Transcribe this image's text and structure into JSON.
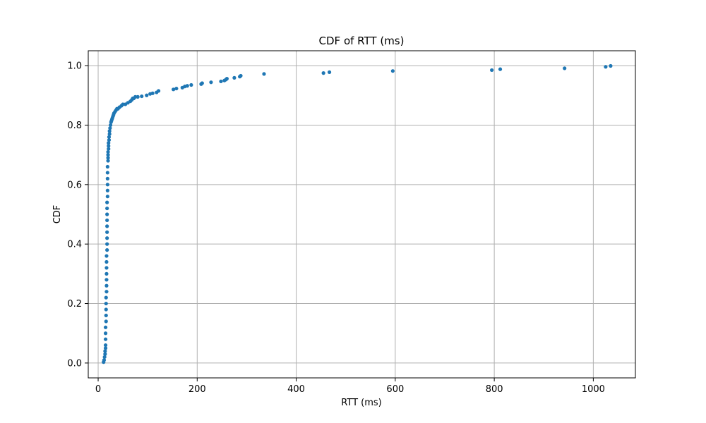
{
  "chart_data": {
    "type": "scatter",
    "title": "CDF of RTT (ms)",
    "xlabel": "RTT (ms)",
    "ylabel": "CDF",
    "xlim": [
      -20,
      1085
    ],
    "ylim": [
      -0.05,
      1.05
    ],
    "xticks": [
      0,
      200,
      400,
      600,
      800,
      1000
    ],
    "yticks": [
      0.0,
      0.2,
      0.4,
      0.6,
      0.8,
      1.0
    ],
    "xtick_labels": [
      "0",
      "200",
      "400",
      "600",
      "800",
      "1000"
    ],
    "ytick_labels": [
      "0.0",
      "0.2",
      "0.4",
      "0.6",
      "0.8",
      "1.0"
    ],
    "grid": true,
    "marker_color": "#1f77b4",
    "series": [
      {
        "x": [
          11,
          12,
          13,
          14,
          14,
          15,
          15,
          15,
          15,
          15,
          16,
          16,
          16,
          16,
          16,
          17,
          17,
          17,
          17,
          17,
          17,
          17,
          18,
          18,
          18,
          18,
          18,
          18,
          18,
          18,
          18,
          19,
          19,
          19,
          19,
          19,
          19,
          20,
          20,
          20,
          20,
          21,
          21,
          21,
          22,
          22,
          23,
          23,
          24,
          25,
          26,
          27,
          28,
          29,
          30,
          31,
          32,
          34,
          36,
          38,
          40,
          43,
          47,
          50,
          55,
          60,
          65,
          68,
          70,
          72,
          75,
          80,
          88,
          98,
          105,
          110,
          118,
          122,
          152,
          158,
          170,
          175,
          180,
          188,
          208,
          210,
          228,
          248,
          255,
          258,
          260,
          275,
          286,
          288,
          335,
          455,
          467,
          595,
          795,
          812,
          942,
          1025,
          1035
        ],
        "y": [
          0.003,
          0.01,
          0.02,
          0.03,
          0.04,
          0.05,
          0.06,
          0.08,
          0.1,
          0.12,
          0.14,
          0.16,
          0.18,
          0.2,
          0.22,
          0.24,
          0.26,
          0.28,
          0.3,
          0.32,
          0.34,
          0.36,
          0.38,
          0.4,
          0.42,
          0.44,
          0.46,
          0.48,
          0.5,
          0.52,
          0.54,
          0.56,
          0.58,
          0.6,
          0.62,
          0.64,
          0.66,
          0.68,
          0.69,
          0.7,
          0.71,
          0.72,
          0.73,
          0.74,
          0.75,
          0.76,
          0.77,
          0.78,
          0.79,
          0.8,
          0.81,
          0.815,
          0.82,
          0.825,
          0.83,
          0.835,
          0.84,
          0.845,
          0.85,
          0.855,
          0.855,
          0.86,
          0.865,
          0.87,
          0.87,
          0.875,
          0.88,
          0.885,
          0.89,
          0.89,
          0.895,
          0.895,
          0.897,
          0.9,
          0.905,
          0.907,
          0.91,
          0.915,
          0.92,
          0.923,
          0.926,
          0.93,
          0.932,
          0.935,
          0.938,
          0.941,
          0.944,
          0.947,
          0.95,
          0.953,
          0.956,
          0.959,
          0.963,
          0.966,
          0.972,
          0.975,
          0.978,
          0.982,
          0.985,
          0.988,
          0.991,
          0.996,
          0.999
        ]
      }
    ]
  }
}
